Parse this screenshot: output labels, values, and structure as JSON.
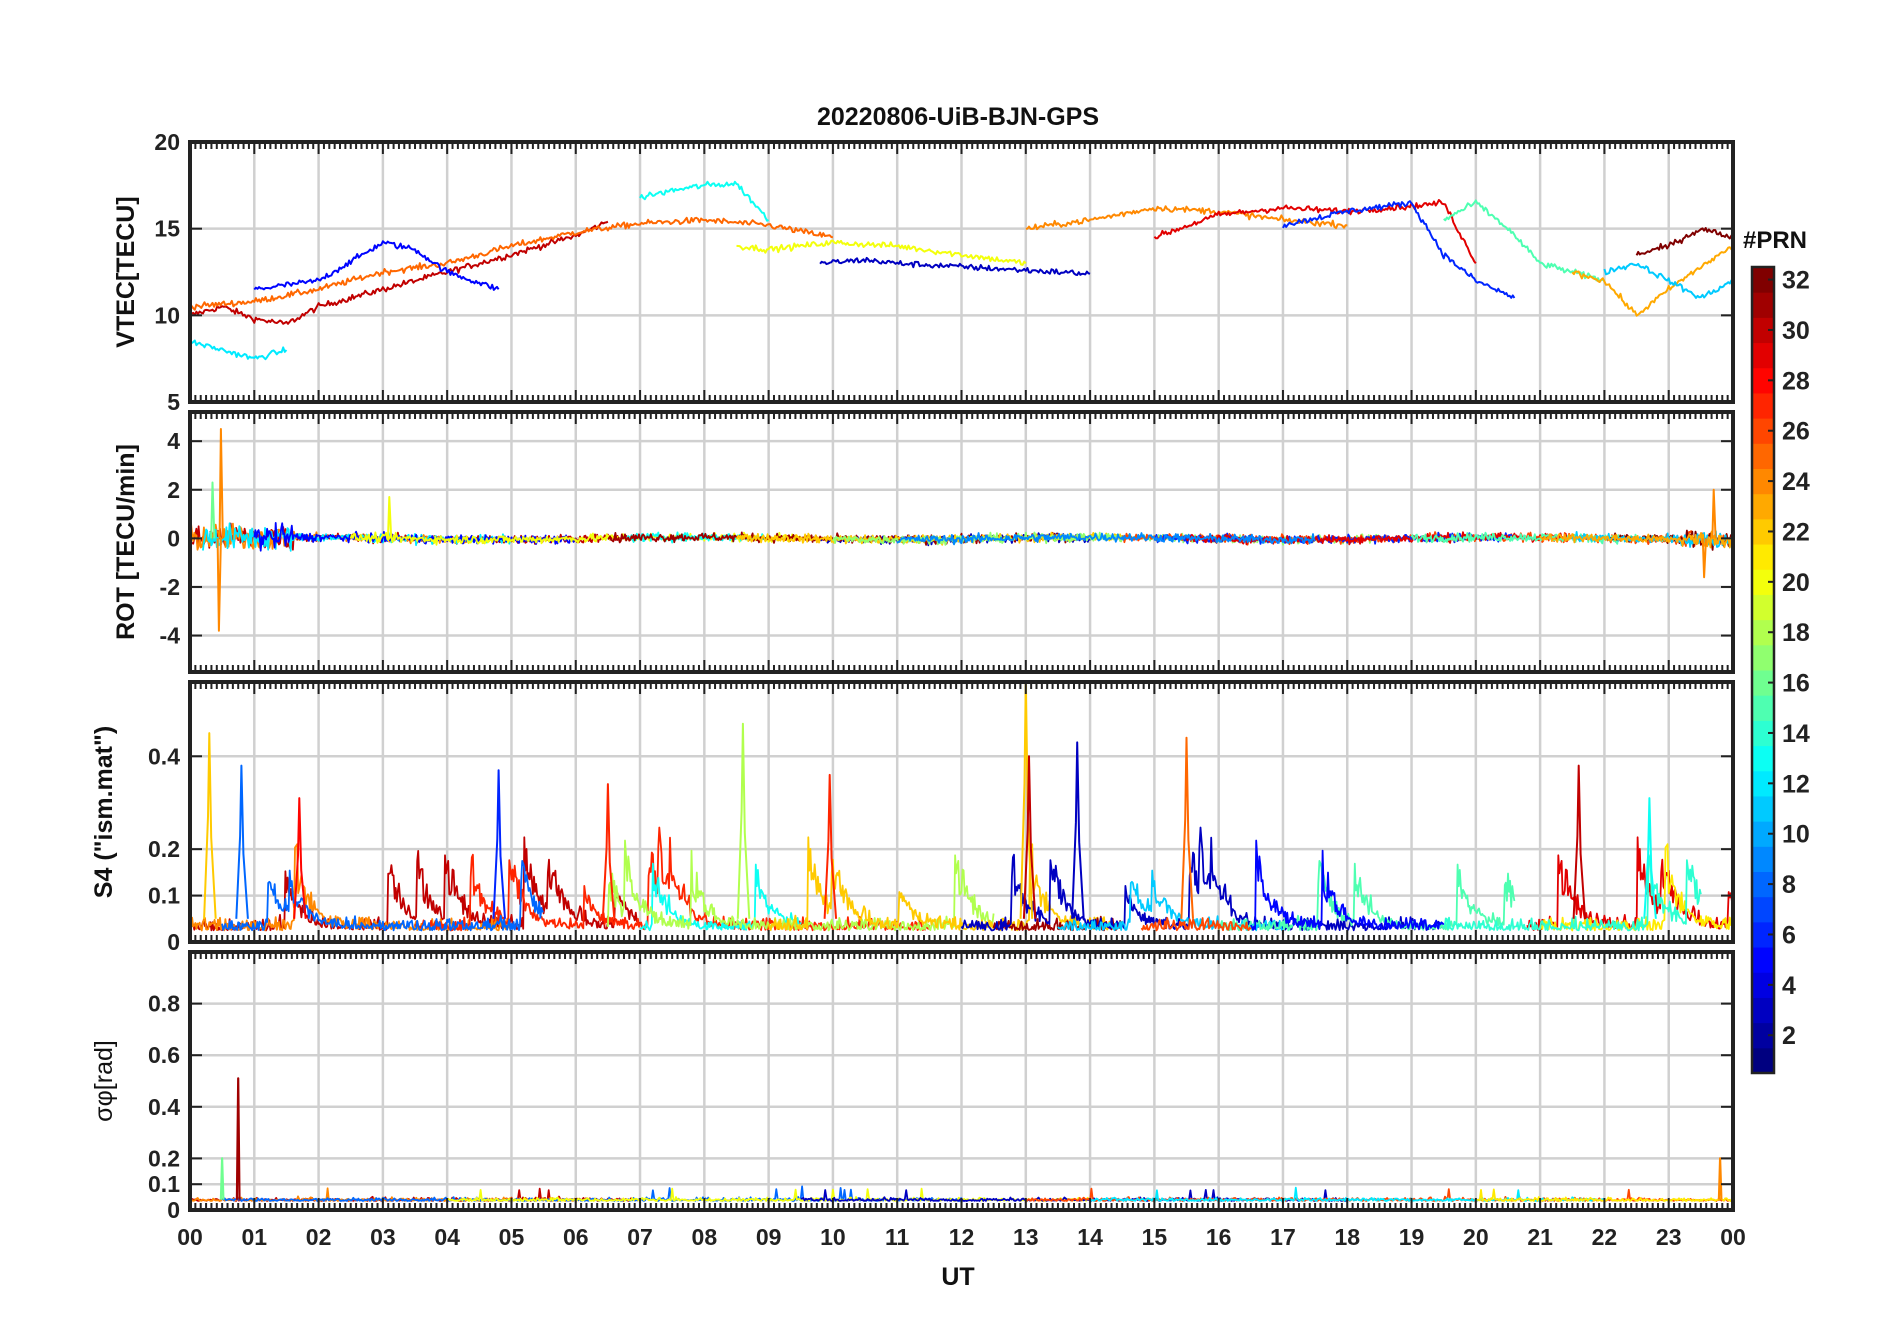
{
  "figure": {
    "title": "20220806-UiB-BJN-GPS",
    "xlabel": "UT",
    "x_tick_labels": [
      "00",
      "01",
      "02",
      "03",
      "04",
      "05",
      "06",
      "07",
      "08",
      "09",
      "10",
      "11",
      "12",
      "13",
      "14",
      "15",
      "16",
      "17",
      "18",
      "19",
      "20",
      "21",
      "22",
      "23",
      "00"
    ]
  },
  "colorbar": {
    "label": "#PRN",
    "colormap": "jet",
    "range": [
      1,
      32
    ],
    "tick_labels": [
      "2",
      "4",
      "6",
      "8",
      "10",
      "12",
      "14",
      "16",
      "18",
      "20",
      "22",
      "24",
      "26",
      "28",
      "30",
      "32"
    ]
  },
  "chart_data": [
    {
      "type": "line",
      "panel": "vtec",
      "ylabel": "VTEC[TECU]",
      "xlim": [
        0,
        24
      ],
      "ylim": [
        5,
        20
      ],
      "y_tick_labels": [
        "5",
        "10",
        "15",
        "20"
      ],
      "grid": true,
      "series_note_free": true,
      "traces": [
        {
          "prn": 30,
          "x": [
            0.0,
            0.5,
            1.0,
            1.5,
            2.0,
            3.0,
            4.0,
            5.0,
            6.0,
            6.5
          ],
          "y": [
            10.0,
            10.5,
            9.8,
            9.5,
            10.5,
            11.5,
            12.5,
            13.5,
            14.6,
            15.4
          ]
        },
        {
          "prn": 25,
          "x": [
            0.0,
            1.0,
            2.0,
            3.0,
            4.0,
            5.0,
            6.0,
            7.0,
            8.0,
            9.0,
            10.0
          ],
          "y": [
            10.5,
            10.8,
            11.5,
            12.5,
            13.0,
            14.0,
            14.8,
            15.3,
            15.5,
            15.2,
            14.5
          ]
        },
        {
          "prn": 5,
          "x": [
            1.0,
            2.0,
            3.0,
            3.5,
            4.0,
            4.8
          ],
          "y": [
            11.5,
            12.0,
            14.2,
            13.8,
            12.5,
            11.5
          ]
        },
        {
          "prn": 12,
          "x": [
            0.0,
            0.5,
            1.0,
            1.5
          ],
          "y": [
            8.5,
            8.0,
            7.5,
            8.0
          ]
        },
        {
          "prn": 13,
          "x": [
            7.0,
            7.5,
            8.0,
            8.5,
            9.0
          ],
          "y": [
            16.8,
            17.2,
            17.5,
            17.6,
            15.5
          ]
        },
        {
          "prn": 20,
          "x": [
            8.5,
            9.0,
            10.0,
            11.0,
            12.0,
            13.0
          ],
          "y": [
            14.0,
            13.8,
            14.2,
            14.0,
            13.5,
            13.0
          ]
        },
        {
          "prn": 3,
          "x": [
            9.8,
            10.5,
            11.0,
            12.0,
            13.0,
            14.0
          ],
          "y": [
            13.0,
            13.2,
            13.0,
            12.8,
            12.6,
            12.4
          ]
        },
        {
          "prn": 24,
          "x": [
            13.0,
            14.0,
            15.0,
            16.0,
            17.0,
            18.0
          ],
          "y": [
            15.0,
            15.5,
            16.2,
            16.0,
            15.5,
            15.2
          ]
        },
        {
          "prn": 29,
          "x": [
            15.0,
            16.0,
            17.0,
            18.0,
            19.0,
            19.5,
            20.0
          ],
          "y": [
            14.5,
            15.8,
            16.2,
            16.0,
            16.3,
            16.5,
            13.0
          ]
        },
        {
          "prn": 6,
          "x": [
            17.0,
            18.0,
            19.0,
            19.5,
            20.0,
            20.6
          ],
          "y": [
            15.2,
            16.0,
            16.5,
            13.5,
            12.0,
            11.0
          ]
        },
        {
          "prn": 15,
          "x": [
            19.5,
            20.0,
            20.5,
            21.0,
            21.5,
            22.0
          ],
          "y": [
            15.5,
            16.5,
            15.0,
            13.0,
            12.5,
            12.0
          ]
        },
        {
          "prn": 23,
          "x": [
            21.5,
            22.0,
            22.5,
            23.0,
            23.5,
            24.0
          ],
          "y": [
            12.5,
            12.0,
            10.0,
            11.5,
            12.8,
            14.0
          ]
        },
        {
          "prn": 32,
          "x": [
            22.5,
            23.0,
            23.5,
            24.0
          ],
          "y": [
            13.5,
            14.0,
            15.0,
            14.5
          ]
        },
        {
          "prn": 11,
          "x": [
            22.0,
            22.5,
            23.0,
            23.5,
            24.0
          ],
          "y": [
            12.5,
            13.0,
            12.0,
            11.0,
            12.0
          ]
        }
      ]
    },
    {
      "type": "line",
      "panel": "rot",
      "ylabel": "ROT [TECU/min]",
      "xlim": [
        0,
        24
      ],
      "ylim": [
        -5.5,
        5.2
      ],
      "y_tick_labels": [
        "-4",
        "-2",
        "0",
        "2",
        "4"
      ],
      "grid": true,
      "spikes": [
        {
          "prn": 24,
          "x": 0.48,
          "y": 4.5
        },
        {
          "prn": 24,
          "x": 0.45,
          "y": -3.8
        },
        {
          "prn": 16,
          "x": 0.35,
          "y": 2.3
        },
        {
          "prn": 20,
          "x": 3.1,
          "y": 1.7
        },
        {
          "prn": 24,
          "x": 23.7,
          "y": 2.0
        },
        {
          "prn": 24,
          "x": 23.55,
          "y": -1.6
        }
      ]
    },
    {
      "type": "line",
      "panel": "s4",
      "ylabel": "S4 (\"ism.mat\")",
      "xlim": [
        0,
        24
      ],
      "ylim": [
        0,
        0.56
      ],
      "y_tick_labels": [
        "0",
        "0.1",
        "0.2",
        "0.4"
      ],
      "grid": true,
      "peaks": [
        {
          "prn": 22,
          "x": 0.3,
          "y": 0.45
        },
        {
          "prn": 8,
          "x": 0.8,
          "y": 0.38
        },
        {
          "prn": 28,
          "x": 1.7,
          "y": 0.31
        },
        {
          "prn": 6,
          "x": 4.8,
          "y": 0.37
        },
        {
          "prn": 27,
          "x": 6.5,
          "y": 0.34
        },
        {
          "prn": 18,
          "x": 8.6,
          "y": 0.47
        },
        {
          "prn": 27,
          "x": 9.95,
          "y": 0.36
        },
        {
          "prn": 22,
          "x": 13.0,
          "y": 0.57
        },
        {
          "prn": 30,
          "x": 13.05,
          "y": 0.4
        },
        {
          "prn": 3,
          "x": 13.8,
          "y": 0.43
        },
        {
          "prn": 25,
          "x": 15.5,
          "y": 0.44
        },
        {
          "prn": 30,
          "x": 21.6,
          "y": 0.38
        },
        {
          "prn": 13,
          "x": 22.7,
          "y": 0.31
        }
      ]
    },
    {
      "type": "line",
      "panel": "sigma_phi",
      "ylabel": "σφ[rad]",
      "xlim": [
        0,
        24
      ],
      "ylim": [
        0,
        1.0
      ],
      "y_tick_labels": [
        "0",
        "0.1",
        "0.2",
        "0.4",
        "0.6",
        "0.8"
      ],
      "grid": true,
      "peaks": [
        {
          "prn": 31,
          "x": 0.75,
          "y": 0.51
        },
        {
          "prn": 16,
          "x": 0.5,
          "y": 0.2
        },
        {
          "prn": 24,
          "x": 23.8,
          "y": 0.2
        }
      ]
    }
  ]
}
